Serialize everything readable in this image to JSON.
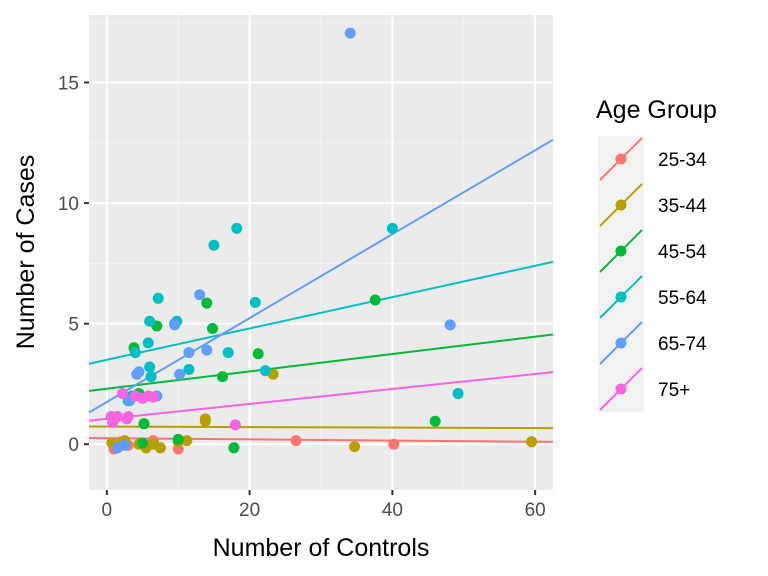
{
  "chart_data": {
    "type": "scatter",
    "xlabel": "Number of Controls",
    "ylabel": "Number of Cases",
    "xlim": [
      -2.5,
      62.5
    ],
    "ylim": [
      -1.9,
      17.8
    ],
    "x_ticks": [
      0,
      20,
      40,
      60
    ],
    "y_ticks": [
      0,
      5,
      10,
      15
    ],
    "grid": true,
    "legend": {
      "title": "Age Group",
      "position": "right"
    },
    "series": [
      {
        "name": "25-34",
        "color": "#F8766D",
        "fit": [
          0.25,
          -0.0025
        ],
        "points": [
          [
            1.0,
            -0.2
          ],
          [
            2.0,
            0.1
          ],
          [
            3.0,
            -0.05
          ],
          [
            5.0,
            0.05
          ],
          [
            6.5,
            0.15
          ],
          [
            10.0,
            -0.2
          ],
          [
            26.5,
            0.15
          ],
          [
            40.2,
            0.0
          ]
        ]
      },
      {
        "name": "35-44",
        "color": "#B79F00",
        "fit": [
          0.73,
          -0.001
        ],
        "points": [
          [
            0.7,
            0.05
          ],
          [
            1.2,
            -0.05
          ],
          [
            2.0,
            0.0
          ],
          [
            2.5,
            0.15
          ],
          [
            4.5,
            0.0
          ],
          [
            5.5,
            -0.15
          ],
          [
            6.5,
            0.0
          ],
          [
            7.5,
            -0.15
          ],
          [
            10.0,
            0.1
          ],
          [
            11.2,
            0.15
          ],
          [
            13.8,
            0.95
          ],
          [
            13.8,
            1.05
          ],
          [
            23.3,
            2.9
          ],
          [
            34.7,
            -0.1
          ],
          [
            59.5,
            0.1
          ]
        ]
      },
      {
        "name": "45-54",
        "color": "#00BA38",
        "fit": [
          2.3,
          0.036
        ],
        "points": [
          [
            3.8,
            4.0
          ],
          [
            4.5,
            2.1
          ],
          [
            5.0,
            0.05
          ],
          [
            5.2,
            0.85
          ],
          [
            7.0,
            4.9
          ],
          [
            10.0,
            0.2
          ],
          [
            14.0,
            5.85
          ],
          [
            14.8,
            4.8
          ],
          [
            16.2,
            2.8
          ],
          [
            17.8,
            -0.15
          ],
          [
            21.2,
            3.75
          ],
          [
            37.6,
            5.98
          ],
          [
            46.0,
            0.95
          ]
        ]
      },
      {
        "name": "55-64",
        "color": "#00BFC4",
        "fit": [
          3.5,
          0.065
        ],
        "points": [
          [
            3.0,
            1.8
          ],
          [
            3.5,
            2.0
          ],
          [
            4.0,
            3.8
          ],
          [
            5.8,
            4.2
          ],
          [
            6.0,
            3.2
          ],
          [
            6.0,
            5.1
          ],
          [
            6.2,
            2.8
          ],
          [
            7.2,
            6.05
          ],
          [
            9.5,
            5.0
          ],
          [
            9.8,
            5.1
          ],
          [
            11.5,
            3.1
          ],
          [
            15.0,
            8.25
          ],
          [
            17.0,
            3.8
          ],
          [
            18.2,
            8.95
          ],
          [
            20.8,
            5.88
          ],
          [
            22.2,
            3.05
          ],
          [
            40.0,
            8.95
          ],
          [
            49.2,
            2.1
          ]
        ]
      },
      {
        "name": "65-74",
        "color": "#619CFF",
        "fit": [
          1.75,
          0.174
        ],
        "points": [
          [
            1.5,
            -0.15
          ],
          [
            2.5,
            -0.05
          ],
          [
            3.2,
            1.8
          ],
          [
            4.2,
            2.9
          ],
          [
            4.5,
            3.0
          ],
          [
            7.0,
            2.0
          ],
          [
            9.5,
            4.95
          ],
          [
            10.2,
            2.9
          ],
          [
            11.5,
            3.8
          ],
          [
            13.0,
            6.2
          ],
          [
            14.0,
            3.9
          ],
          [
            34.1,
            17.05
          ],
          [
            48.1,
            4.95
          ]
        ]
      },
      {
        "name": "75+",
        "color": "#F564E3",
        "fit": [
          1.05,
          0.031
        ],
        "points": [
          [
            0.6,
            1.15
          ],
          [
            0.8,
            0.9
          ],
          [
            1.2,
            1.1
          ],
          [
            1.5,
            1.15
          ],
          [
            2.2,
            2.1
          ],
          [
            2.8,
            1.05
          ],
          [
            3.0,
            1.15
          ],
          [
            4.0,
            2.0
          ],
          [
            5.0,
            1.9
          ],
          [
            5.8,
            2.0
          ],
          [
            6.5,
            1.95
          ],
          [
            18.0,
            0.8
          ]
        ]
      }
    ]
  }
}
